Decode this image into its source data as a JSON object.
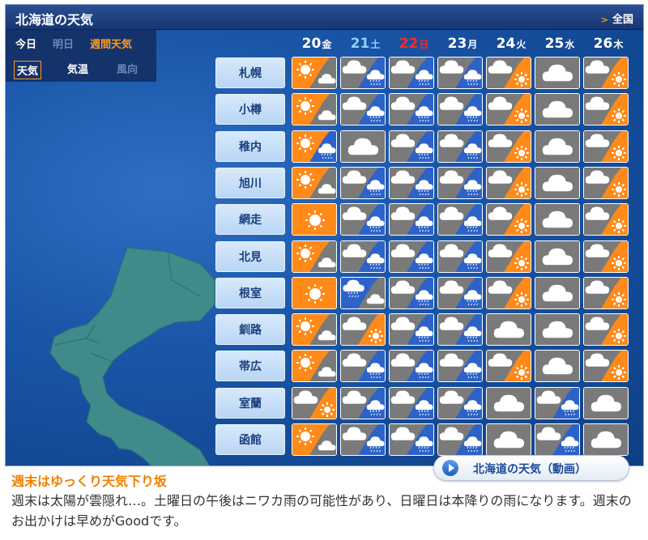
{
  "header": {
    "title": "北海道の天気",
    "all_link": "全国"
  },
  "tabs": [
    {
      "label": "今日",
      "color": "#ffffff"
    },
    {
      "label": "明日",
      "color": "#6d86b5"
    },
    {
      "label": "週間天気",
      "color": "#ff9a1f"
    }
  ],
  "subtabs": [
    {
      "label": "天気",
      "selected": true,
      "color": "#ffffff"
    },
    {
      "label": "気温",
      "selected": false,
      "color": "#ffffff"
    },
    {
      "label": "風向",
      "selected": false,
      "color": "#6d86b5"
    }
  ],
  "days": [
    {
      "num": "20",
      "wd": "金",
      "color": "#ffffff"
    },
    {
      "num": "21",
      "wd": "土",
      "color": "#8fd0ff"
    },
    {
      "num": "22",
      "wd": "日",
      "color": "#ff2a2a"
    },
    {
      "num": "23",
      "wd": "月",
      "color": "#ffffff"
    },
    {
      "num": "24",
      "wd": "火",
      "color": "#ffffff"
    },
    {
      "num": "25",
      "wd": "水",
      "color": "#ffffff"
    },
    {
      "num": "26",
      "wd": "木",
      "color": "#ffffff"
    }
  ],
  "cities": [
    "札幌",
    "小樽",
    "稚内",
    "旭川",
    "網走",
    "北見",
    "根室",
    "釧路",
    "帯広",
    "室蘭",
    "函館"
  ],
  "weather_codes_legend": {
    "s": "sunny",
    "c": "cloudy",
    "r": "rain",
    "s/c": "sun then cloud",
    "c/s": "cloud then sun",
    "c/r": "cloud then rain",
    "s/r": "sun then rain",
    "r/c": "rain then cloud"
  },
  "forecast": [
    [
      "s/c",
      "c/r",
      "c/r",
      "c/r",
      "c/s",
      "c",
      "c/s"
    ],
    [
      "s/c",
      "c/r",
      "c/r",
      "c/r",
      "c/s",
      "c",
      "c/s"
    ],
    [
      "s/r",
      "c",
      "c/r",
      "c/r",
      "c/s",
      "c",
      "c/s"
    ],
    [
      "s/c",
      "c/r",
      "c/r",
      "c/r",
      "c/s",
      "c",
      "c/s"
    ],
    [
      "s",
      "c/r",
      "c/r",
      "c/r",
      "c/s",
      "c",
      "c/s"
    ],
    [
      "s/c",
      "c/r",
      "c/r",
      "c/r",
      "c/s",
      "c",
      "c/s"
    ],
    [
      "s",
      "r/c",
      "c/r",
      "c/r",
      "c/s",
      "c",
      "c/s"
    ],
    [
      "s/c",
      "c/s",
      "c/r",
      "c/r",
      "c",
      "c",
      "c/s"
    ],
    [
      "s/c",
      "c/r",
      "c/r",
      "c/r",
      "c/s",
      "c",
      "c/s"
    ],
    [
      "c/s",
      "c/r",
      "c/r",
      "c/r",
      "c",
      "c/r",
      "c"
    ],
    [
      "s/c",
      "c/r",
      "c/r",
      "c/r",
      "c",
      "c/r",
      "c"
    ]
  ],
  "article": {
    "title": "週末はゆっくり天気下り坂",
    "body": "週末は太陽が雲隠れ…。土曜日の午後はニワカ雨の可能性があり、日曜日は本降りの雨になります。週末のお出かけは早めがGoodです。"
  },
  "video_button": {
    "label": "北海道の天気（動画）"
  },
  "colors": {
    "sunny_bg": "#ff8a1a",
    "cloud_bg": "#7a7a7a",
    "rain_bg": "#2d63c8",
    "header": "#1c3f80"
  }
}
